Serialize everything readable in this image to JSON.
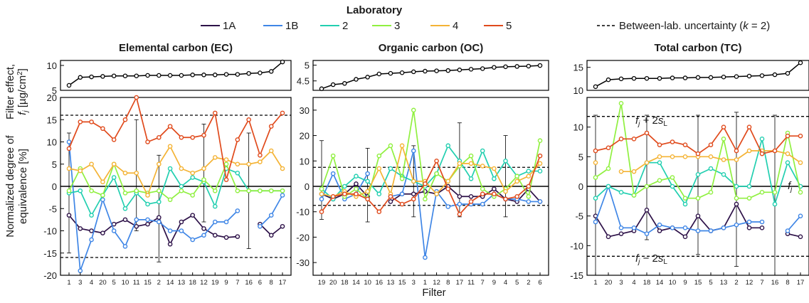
{
  "legend": {
    "title": "Laboratory",
    "entries": [
      {
        "label": "1A",
        "color": "#2d1148"
      },
      {
        "label": "1B",
        "color": "#3f86e6"
      },
      {
        "label": "2",
        "color": "#22cfb0"
      },
      {
        "label": "3",
        "color": "#90f040"
      },
      {
        "label": "4",
        "color": "#f4b335"
      },
      {
        "label": "5",
        "color": "#e04a1c"
      }
    ],
    "uncertainty_label_prefix": "Between-lab. uncertainty (",
    "uncertainty_k": "k",
    "uncertainty_label_suffix": " = 2)"
  },
  "y_label_top_line1": "Filter effect,",
  "y_label_top_line2": "f",
  "y_label_top_line2_sub": "j",
  "y_label_top_line2_rest": " [µg/cm",
  "y_label_top_line2_sup": "2",
  "y_label_top_line2_end": "]",
  "y_label_bottom_line1": "Normalized degree of",
  "y_label_bottom_line2": "equivalence [%]",
  "x_label": "Filter",
  "annotations": {
    "f": "f",
    "j": "j",
    "plus": " + 2",
    "minus": " − 2",
    "s": "s",
    "L": "L"
  },
  "chart_data": [
    {
      "title": "Elemental carbon (EC)",
      "type": "line",
      "categories": [
        "1",
        "3",
        "4",
        "20",
        "5",
        "10",
        "11",
        "15",
        "2",
        "14",
        "13",
        "18",
        "12",
        "19",
        "9",
        "7",
        "16",
        "6",
        "8",
        "17"
      ],
      "filter_effect": {
        "values": [
          6.0,
          7.6,
          7.7,
          7.8,
          7.9,
          7.9,
          7.9,
          8.0,
          8.0,
          8.0,
          8.0,
          8.1,
          8.1,
          8.1,
          8.2,
          8.2,
          8.4,
          8.5,
          8.8,
          10.7
        ],
        "ylim": [
          5,
          11
        ],
        "yticks": [
          5,
          10
        ]
      },
      "ylim": [
        -20,
        20
      ],
      "yticks": [
        -20,
        -15,
        -10,
        -5,
        0,
        5,
        10,
        15,
        20
      ],
      "uncertainty": [
        -16,
        16
      ],
      "error_bars": [
        {
          "index": 0,
          "low": -15,
          "high": 12
        },
        {
          "index": 6,
          "low": -10,
          "high": 15
        },
        {
          "index": 8,
          "low": -17,
          "high": 7
        },
        {
          "index": 12,
          "low": -8,
          "high": 14
        },
        {
          "index": 16,
          "low": -14,
          "high": 12
        }
      ],
      "series": [
        {
          "name": "1A",
          "values": [
            -6.5,
            -9.5,
            -10,
            -10.5,
            -8.5,
            -7.5,
            -9,
            -8.5,
            -7,
            -13,
            -8,
            -6.5,
            -9.5,
            -11,
            -11.5,
            -11.3,
            null,
            -8.5,
            -11,
            -9
          ]
        },
        {
          "name": "1B",
          "values": [
            10,
            -19,
            -12,
            -3,
            -10,
            -13.5,
            -7.5,
            -7.5,
            -8,
            -10,
            -10,
            -12,
            -11,
            -8,
            -8,
            -5.5,
            null,
            -9,
            -6.5,
            -2
          ]
        },
        {
          "name": "2",
          "values": [
            -1.5,
            -1,
            -6.5,
            -2,
            2,
            -5,
            -1.5,
            -4,
            -3.5,
            4,
            0,
            2,
            1,
            -4.5,
            4,
            3,
            -1,
            -1,
            -1,
            -1
          ]
        },
        {
          "name": "3",
          "values": [
            -1,
            4,
            -1,
            -2,
            5,
            -1.5,
            -1,
            -1.5,
            -1,
            -3,
            -1,
            -2,
            1.5,
            -1,
            5,
            -1,
            -1,
            -1,
            -1,
            -1
          ]
        },
        {
          "name": "4",
          "values": [
            4,
            3.5,
            5,
            1,
            5,
            3,
            3,
            -2,
            5,
            9,
            4,
            3,
            4,
            6.5,
            6,
            5,
            5,
            5.5,
            8,
            4
          ]
        },
        {
          "name": "5",
          "values": [
            8.5,
            14.5,
            14.5,
            13,
            10.5,
            15,
            20,
            10,
            11,
            13.5,
            11,
            11,
            11.5,
            16.5,
            1.5,
            10.5,
            15,
            7,
            13.5,
            16.5
          ]
        }
      ]
    },
    {
      "title": "Organic carbon (OC)",
      "type": "line",
      "categories": [
        "19",
        "20",
        "18",
        "14",
        "10",
        "16",
        "13",
        "15",
        "3",
        "1",
        "12",
        "8",
        "17",
        "11",
        "7",
        "9",
        "4",
        "5",
        "2",
        "6"
      ],
      "filter_effect": {
        "values": [
          4.25,
          4.38,
          4.42,
          4.55,
          4.62,
          4.72,
          4.74,
          4.76,
          4.79,
          4.81,
          4.82,
          4.83,
          4.85,
          4.87,
          4.89,
          4.93,
          4.95,
          4.96,
          4.97,
          4.99
        ],
        "ylim": [
          4.2,
          5.15
        ],
        "yticks": [
          4.5,
          5
        ]
      },
      "ylim": [
        -35,
        35
      ],
      "yticks": [
        -30,
        -20,
        -10,
        0,
        10,
        20,
        30
      ],
      "uncertainty": [
        -7.5,
        7.5
      ],
      "error_bars": [
        {
          "index": 0,
          "low": -13,
          "high": 18
        },
        {
          "index": 4,
          "low": -14,
          "high": 15
        },
        {
          "index": 8,
          "low": -12,
          "high": 16
        },
        {
          "index": 12,
          "low": -12,
          "high": 25
        },
        {
          "index": 16,
          "low": -12,
          "high": 20
        }
      ],
      "series": [
        {
          "name": "1A",
          "values": [
            -3,
            -5,
            -3,
            1,
            -4,
            null,
            -6,
            -3,
            -3,
            -2,
            -3,
            0,
            -4,
            -4,
            -4,
            -1,
            -5,
            -6,
            -1,
            -6
          ]
        },
        {
          "name": "1B",
          "values": [
            -5,
            5,
            -5,
            -3,
            5,
            null,
            -4,
            -3,
            14,
            -28,
            -2,
            -8,
            -7,
            -7,
            -7,
            -3,
            -5,
            -5,
            -6,
            -6
          ]
        },
        {
          "name": "2",
          "values": [
            -1,
            -5,
            0,
            4,
            2,
            -3,
            7,
            4,
            2,
            0,
            5,
            16,
            10,
            3,
            14,
            3,
            10,
            4,
            6,
            6
          ]
        },
        {
          "name": "3",
          "values": [
            -1,
            12,
            -4,
            -1,
            -5,
            12,
            16,
            3,
            30,
            -5,
            5,
            2,
            8,
            12,
            -1,
            -4,
            -1,
            4,
            -4,
            18
          ]
        },
        {
          "name": "4",
          "values": [
            -3,
            -4,
            -2,
            -4,
            -2,
            7,
            -3,
            16,
            2,
            2,
            -3,
            2,
            9,
            9,
            8,
            7,
            -2,
            2,
            4,
            9
          ]
        },
        {
          "name": "5",
          "values": [
            -10,
            -4,
            -3,
            -3,
            -5,
            -10,
            -4,
            -7,
            -5,
            1,
            10,
            -1,
            -11,
            -6,
            -3,
            -3,
            -5,
            -4,
            0,
            12
          ]
        }
      ]
    },
    {
      "title": "Total carbon (TC)",
      "type": "line",
      "categories": [
        "1",
        "20",
        "3",
        "4",
        "18",
        "14",
        "10",
        "9",
        "15",
        "5",
        "13",
        "2",
        "12",
        "7",
        "16",
        "8",
        "17"
      ],
      "filter_effect": {
        "values": [
          10.8,
          12.3,
          12.5,
          12.6,
          12.6,
          12.6,
          12.7,
          12.7,
          12.8,
          12.8,
          12.9,
          13.0,
          13.1,
          13.2,
          13.4,
          13.7,
          16.0
        ],
        "ylim": [
          10,
          16.5
        ],
        "yticks": [
          10,
          15
        ]
      },
      "ylim": [
        -15,
        15
      ],
      "yticks": [
        -15,
        -10,
        -5,
        0,
        5,
        10
      ],
      "uncertainty": [
        -11.8,
        11.8
      ],
      "error_bars": [
        {
          "index": 0,
          "low": -15,
          "high": 12
        },
        {
          "index": 4,
          "low": -9,
          "high": 12
        },
        {
          "index": 8,
          "low": -11.5,
          "high": 12
        },
        {
          "index": 11,
          "low": -13.5,
          "high": 12.5
        },
        {
          "index": 14,
          "low": -15,
          "high": 12
        }
      ],
      "series": [
        {
          "name": "1A",
          "values": [
            -5,
            -8.5,
            -8,
            -7.5,
            -4,
            -7.5,
            -7,
            -8.5,
            -5,
            -7.5,
            -7,
            -3,
            -7,
            -7,
            null,
            -8,
            -8.5
          ]
        },
        {
          "name": "1B",
          "values": [
            -6,
            0,
            -7,
            -7,
            -8,
            -6.5,
            -7,
            -7,
            -7.5,
            -7.5,
            -7,
            -6.5,
            -6,
            -6,
            null,
            -7.5,
            -5
          ]
        },
        {
          "name": "2",
          "values": [
            -2,
            0,
            -1,
            -1.5,
            4,
            4,
            0,
            -3,
            2,
            3,
            2,
            0,
            0,
            8,
            -3,
            4,
            0
          ]
        },
        {
          "name": "3",
          "values": [
            1.5,
            3,
            14,
            -1.5,
            0,
            1,
            1.5,
            -2,
            -2,
            -1,
            8,
            -2,
            -2,
            -1,
            -1,
            9,
            -1
          ]
        },
        {
          "name": "4",
          "values": [
            4,
            null,
            2.5,
            2.5,
            4,
            5,
            5,
            5,
            5,
            5,
            4.5,
            4.5,
            6,
            6,
            6,
            5.5,
            4
          ]
        },
        {
          "name": "5",
          "values": [
            6,
            6.5,
            8,
            8,
            9,
            7,
            7.5,
            7,
            5.5,
            7,
            10,
            6,
            10,
            5.5,
            6,
            8.5,
            8.5
          ]
        }
      ]
    }
  ]
}
